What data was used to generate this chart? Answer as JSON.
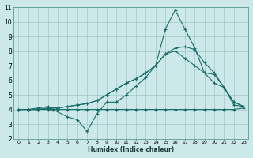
{
  "xlabel": "Humidex (Indice chaleur)",
  "ylabel": "",
  "xlim": [
    -0.5,
    23.5
  ],
  "ylim": [
    2,
    11
  ],
  "xticks": [
    0,
    1,
    2,
    3,
    4,
    5,
    6,
    7,
    8,
    9,
    10,
    11,
    12,
    13,
    14,
    15,
    16,
    17,
    18,
    19,
    20,
    21,
    22,
    23
  ],
  "yticks": [
    2,
    3,
    4,
    5,
    6,
    7,
    8,
    9,
    10,
    11
  ],
  "bg_color": "#cce8e8",
  "line_color": "#1a6e6a",
  "grid_color": "#a8cccc",
  "series": [
    {
      "x": [
        0,
        1,
        2,
        3,
        4,
        5,
        6,
        7,
        8,
        9,
        10,
        11,
        12,
        13,
        14,
        15,
        16,
        17,
        18,
        19,
        20,
        21,
        22,
        23
      ],
      "y": [
        4.0,
        4.0,
        4.0,
        4.0,
        4.0,
        4.0,
        4.0,
        4.0,
        4.0,
        4.0,
        4.0,
        4.0,
        4.0,
        4.0,
        4.0,
        4.0,
        4.0,
        4.0,
        4.0,
        4.0,
        4.0,
        4.0,
        4.0,
        4.1
      ]
    },
    {
      "x": [
        0,
        1,
        2,
        3,
        3.5,
        5,
        6,
        7,
        8,
        9,
        10,
        11,
        12,
        13,
        14,
        15,
        16,
        17,
        18,
        19,
        20,
        21,
        22,
        23
      ],
      "y": [
        4.0,
        4.0,
        4.1,
        4.2,
        4.0,
        3.5,
        3.3,
        2.5,
        3.7,
        4.5,
        4.5,
        5.0,
        5.6,
        6.2,
        7.0,
        9.5,
        10.8,
        9.5,
        8.2,
        6.5,
        5.8,
        5.5,
        4.3,
        4.2
      ]
    },
    {
      "x": [
        0,
        1,
        2,
        3,
        4,
        5,
        6,
        7,
        8,
        9,
        10,
        11,
        12,
        13,
        14,
        15,
        16,
        17,
        18,
        19,
        20,
        21,
        22,
        23
      ],
      "y": [
        4.0,
        4.0,
        4.0,
        4.1,
        4.1,
        4.2,
        4.3,
        4.4,
        4.6,
        5.0,
        5.4,
        5.8,
        6.1,
        6.5,
        7.0,
        7.8,
        8.2,
        8.3,
        8.1,
        7.2,
        6.5,
        5.5,
        4.5,
        4.2
      ]
    },
    {
      "x": [
        0,
        1,
        2,
        3,
        4,
        5,
        6,
        7,
        8,
        9,
        10,
        11,
        12,
        13,
        14,
        15,
        16,
        17,
        18,
        19,
        20,
        21,
        22,
        23
      ],
      "y": [
        4.0,
        4.0,
        4.0,
        4.1,
        4.1,
        4.2,
        4.3,
        4.4,
        4.6,
        5.0,
        5.4,
        5.8,
        6.1,
        6.5,
        7.0,
        7.8,
        8.0,
        7.5,
        7.0,
        6.5,
        6.4,
        5.5,
        4.5,
        4.2
      ]
    }
  ]
}
